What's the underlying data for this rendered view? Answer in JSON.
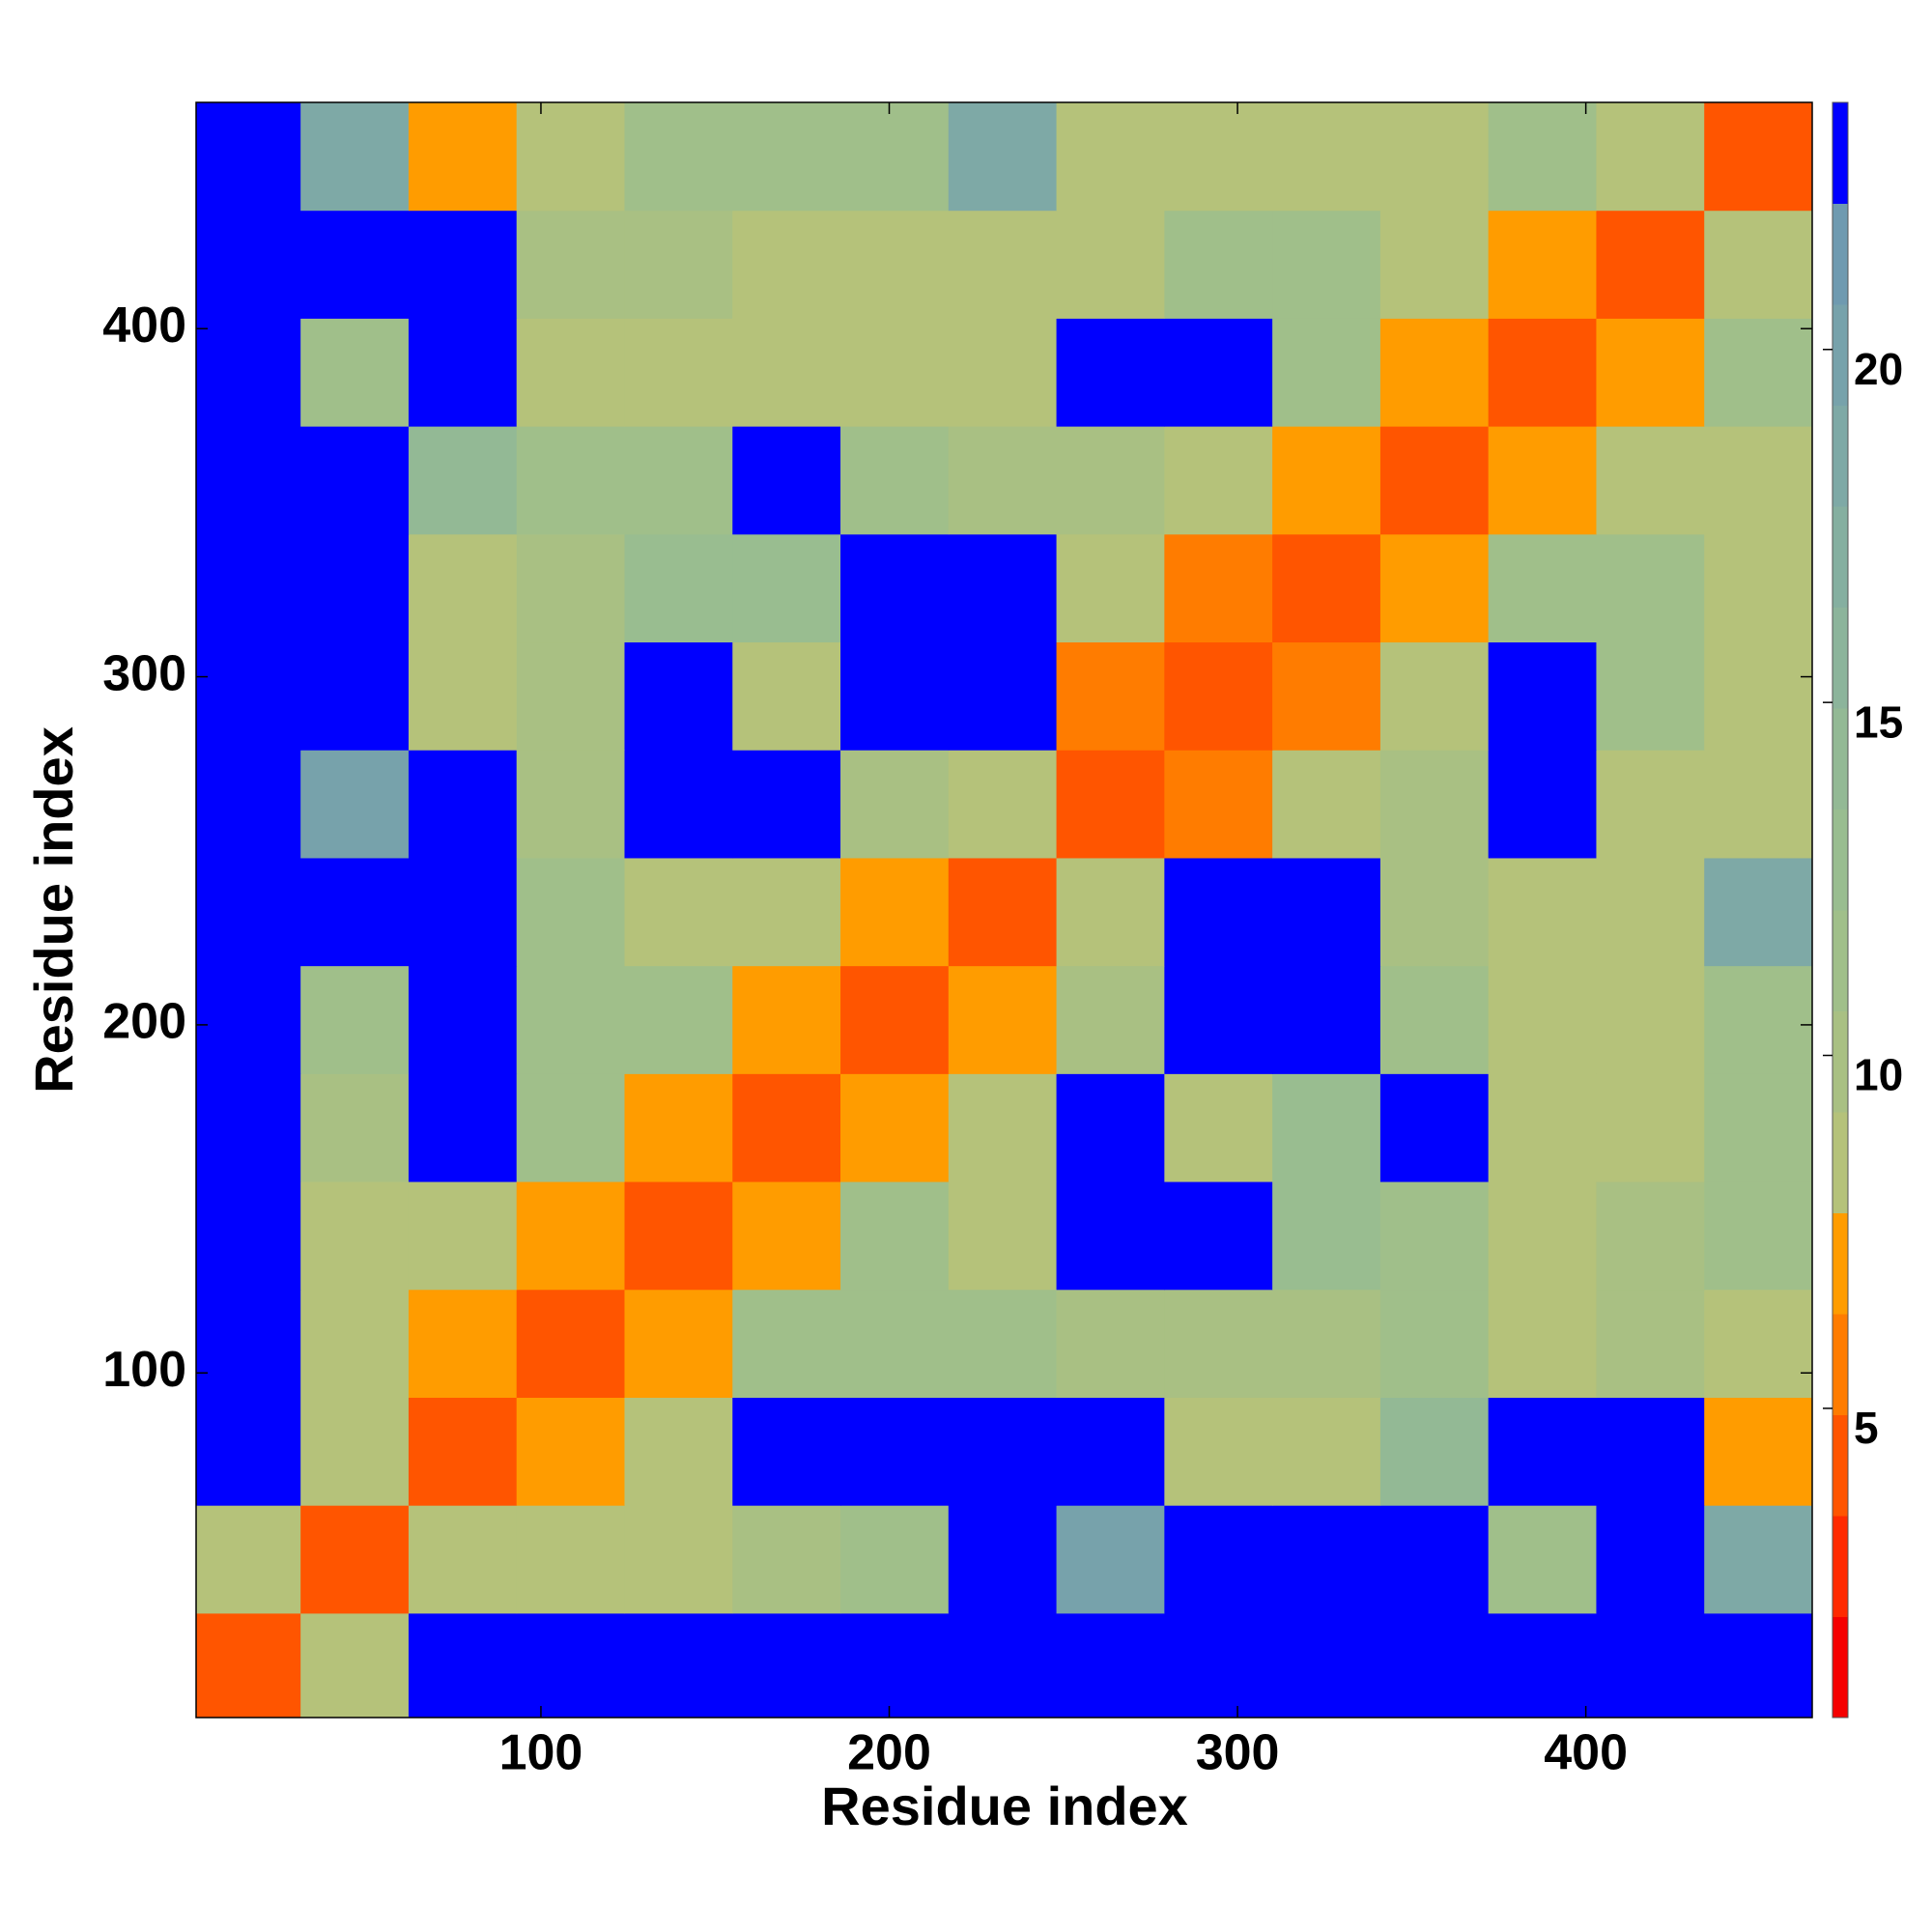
{
  "chart_data": {
    "type": "heatmap",
    "xlabel": "Residue index",
    "ylabel": "Residue index",
    "xlim": [
      1,
      465
    ],
    "ylim": [
      1,
      465
    ],
    "xticks": [
      100,
      200,
      300,
      400
    ],
    "yticks": [
      100,
      200,
      300,
      400
    ],
    "x_edges": [
      0,
      31,
      62,
      93,
      124,
      155,
      186,
      217,
      248,
      279,
      310,
      341,
      372,
      403,
      434,
      465
    ],
    "y_edges": [
      0,
      31,
      62,
      93,
      124,
      155,
      186,
      217,
      248,
      279,
      310,
      341,
      372,
      403,
      434,
      465
    ],
    "z": [
      [
        4,
        8,
        23,
        23,
        23,
        23,
        23,
        23,
        23,
        23,
        23,
        23,
        23,
        23,
        23
      ],
      [
        8,
        4,
        9,
        9,
        9,
        10,
        12,
        23,
        20,
        23,
        23,
        23,
        11,
        23,
        18
      ],
      [
        23,
        9,
        4,
        7,
        9,
        23,
        23,
        23,
        23,
        9,
        9,
        14,
        23,
        23,
        7
      ],
      [
        23,
        9,
        7,
        4,
        7,
        12,
        12,
        12,
        10,
        10,
        10,
        11,
        8,
        10,
        8
      ],
      [
        23,
        9,
        9,
        7,
        4,
        7,
        11,
        8,
        23,
        23,
        13,
        11,
        8,
        10,
        11
      ],
      [
        23,
        10,
        23,
        12,
        7,
        4,
        7,
        8,
        23,
        8,
        13,
        23,
        9,
        9,
        12
      ],
      [
        23,
        12,
        23,
        12,
        11,
        7,
        4,
        7,
        10,
        23,
        23,
        11,
        8,
        8,
        11
      ],
      [
        23,
        23,
        23,
        12,
        8,
        8,
        7,
        4,
        8,
        23,
        23,
        10,
        8,
        8,
        18
      ],
      [
        23,
        20,
        23,
        10,
        23,
        23,
        10,
        8,
        4,
        6,
        8,
        10,
        23,
        9,
        8
      ],
      [
        23,
        23,
        9,
        10,
        23,
        8,
        23,
        23,
        6,
        4,
        6,
        8,
        23,
        11,
        8
      ],
      [
        23,
        23,
        9,
        10,
        13,
        13,
        23,
        23,
        8,
        6,
        4,
        7,
        11,
        12,
        8
      ],
      [
        23,
        23,
        14,
        11,
        11,
        23,
        11,
        10,
        10,
        8,
        7,
        4,
        7,
        8,
        8
      ],
      [
        23,
        11,
        23,
        8,
        8,
        9,
        8,
        8,
        23,
        23,
        11,
        7,
        4,
        7,
        11
      ],
      [
        23,
        23,
        23,
        10,
        10,
        9,
        8,
        8,
        9,
        11,
        12,
        8,
        7,
        4,
        8
      ],
      [
        23,
        18,
        7,
        8,
        11,
        12,
        11,
        18,
        8,
        8,
        8,
        8,
        11,
        8,
        4
      ]
    ],
    "colorbar": {
      "clim": [
        0.62,
        23.5
      ],
      "ticks": [
        5,
        10,
        15,
        20
      ],
      "levels": [
        0.62,
        2.05,
        3.48,
        4.91,
        6.34,
        7.77,
        9.2,
        10.63,
        12.06,
        13.49,
        14.92,
        16.35,
        17.78,
        19.21,
        20.64,
        22.07,
        23.5
      ],
      "colors": [
        "#f50000",
        "#ff2a00",
        "#ff5500",
        "#ff7c00",
        "#ff9c00",
        "#b5c27a",
        "#a9c083",
        "#a0bf8a",
        "#99bd90",
        "#93b995",
        "#8cb49b",
        "#85afa0",
        "#7ea9a6",
        "#77a2ab",
        "#6f9ab0",
        "#0000ff"
      ]
    }
  }
}
